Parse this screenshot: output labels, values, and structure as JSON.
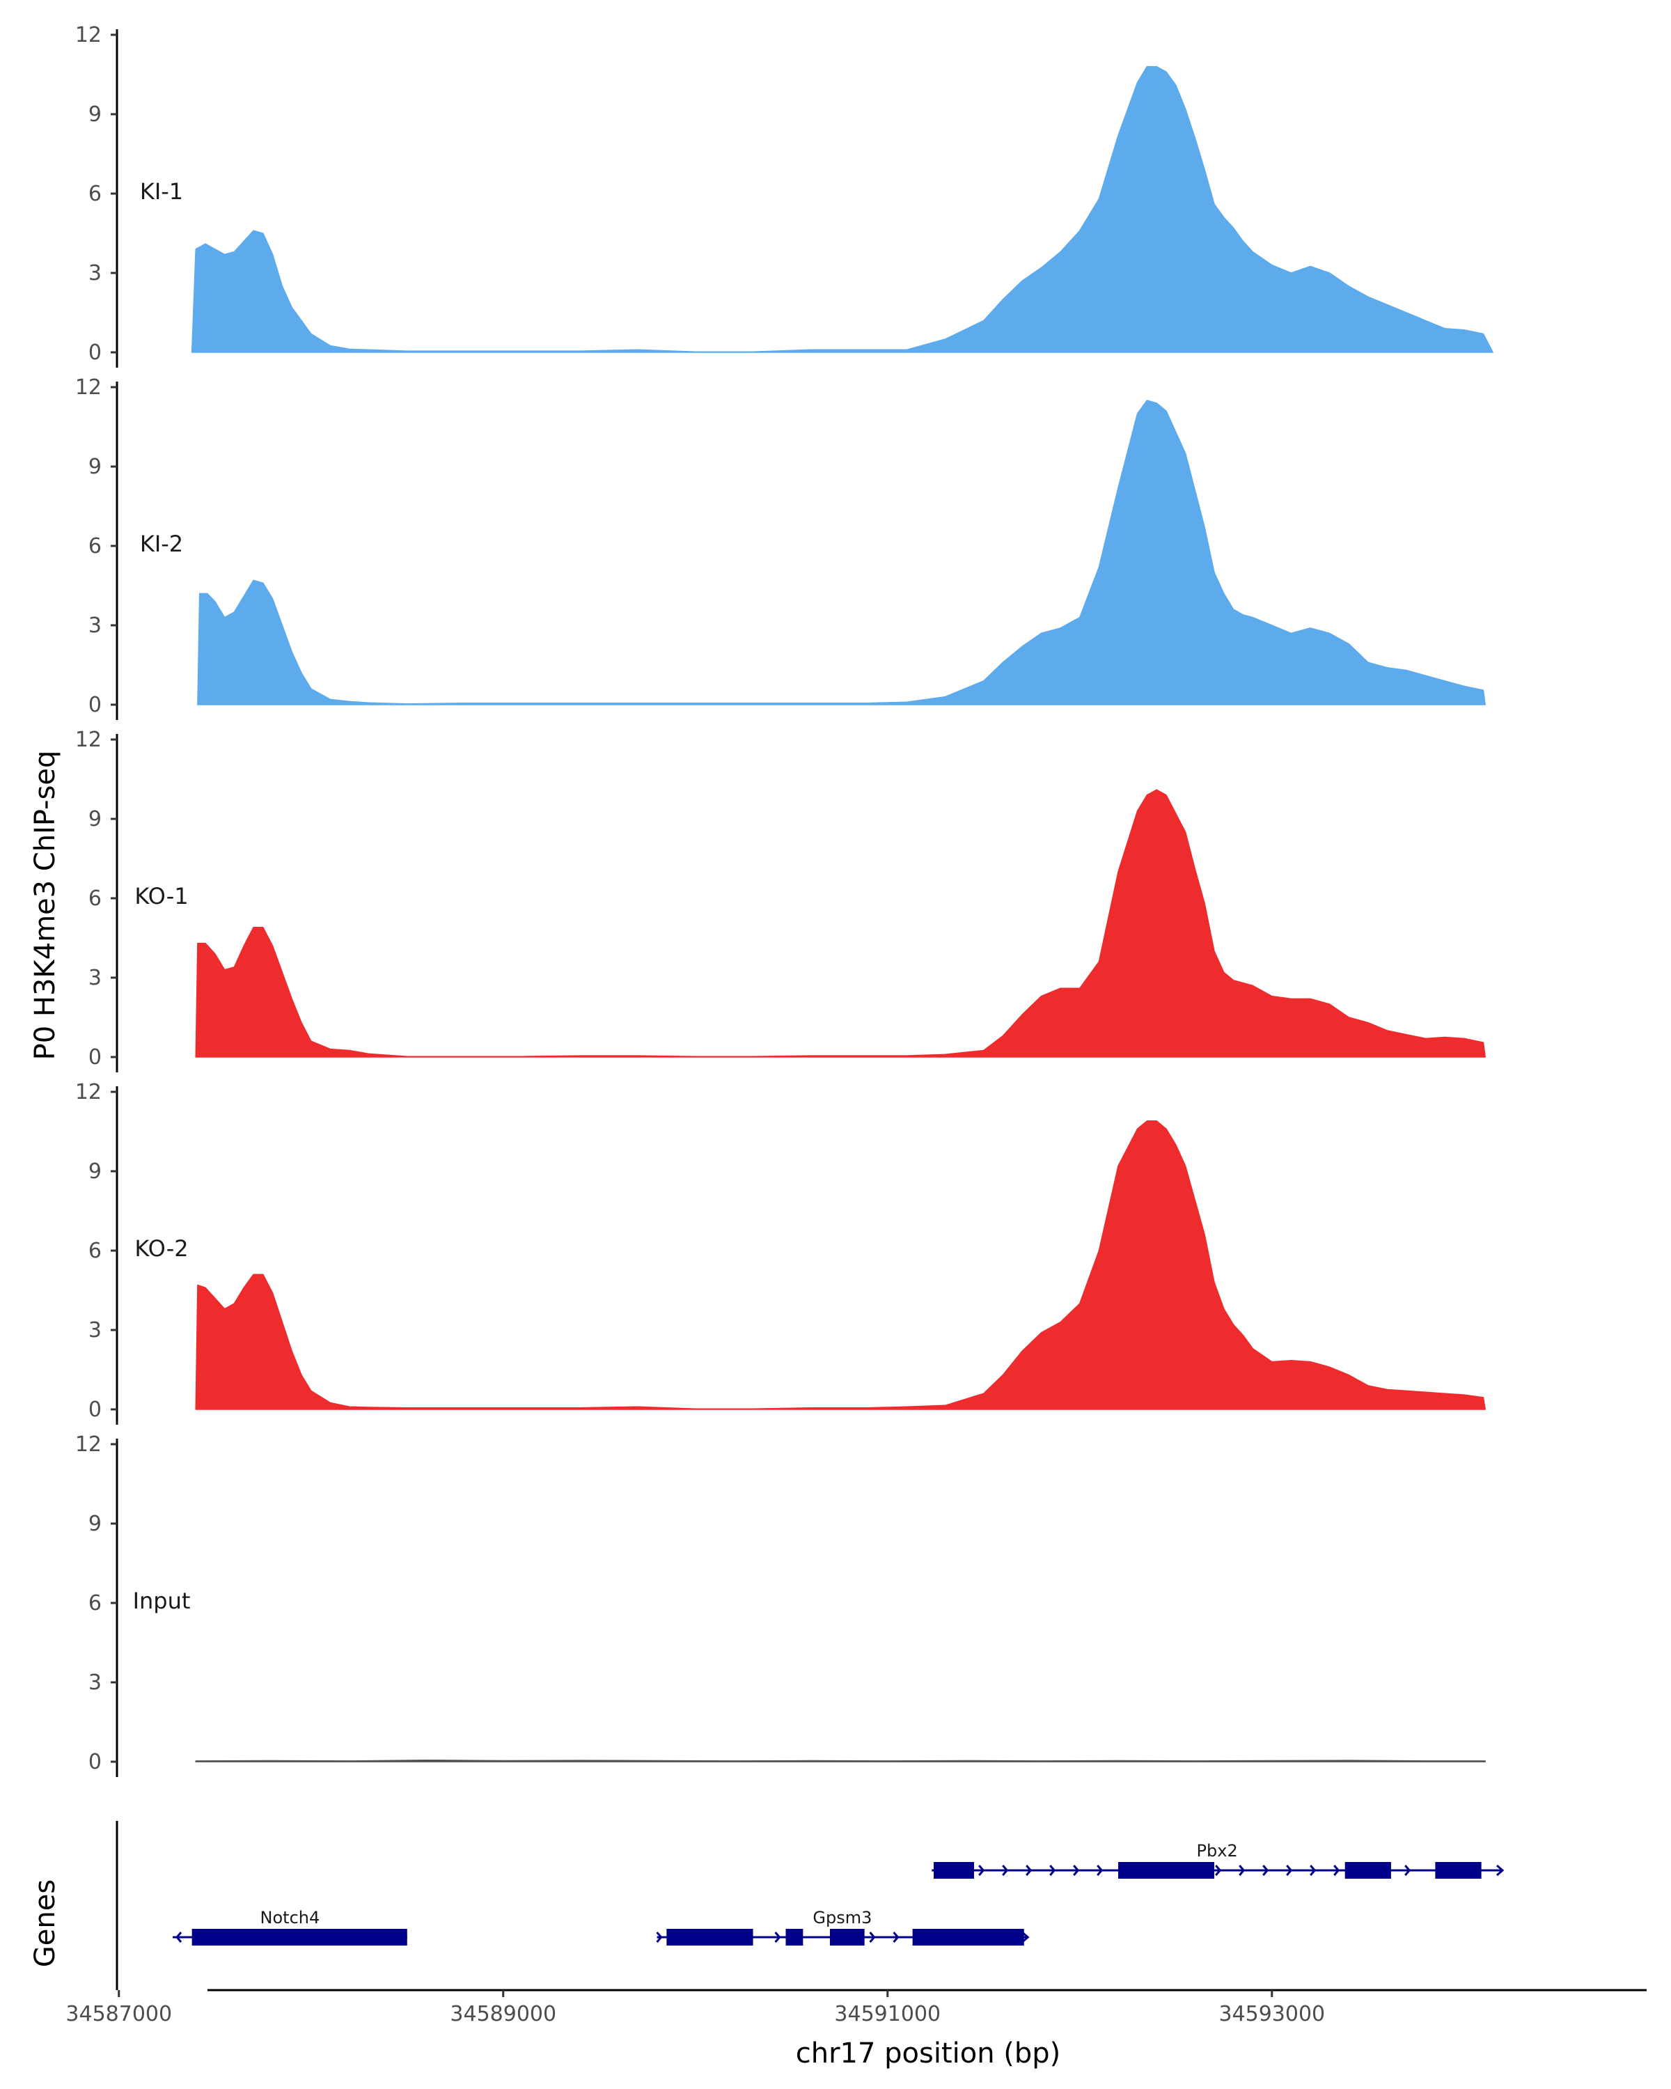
{
  "chart_data": {
    "type": "area",
    "title": "",
    "xlabel": "chr17 position (bp)",
    "ylabel": "P0 H3K4me3 ChIP-seq",
    "genes_label": "Genes",
    "xlim": [
      34586990,
      34594950
    ],
    "ylim": [
      0,
      12
    ],
    "yticks": [
      0,
      3,
      6,
      9,
      12
    ],
    "xticks": [
      34587000,
      34589000,
      34591000,
      34593000
    ],
    "xtick_labels": [
      "34587000",
      "34589000",
      "34591000",
      "34593000"
    ],
    "tracks": [
      {
        "name": "KI-1",
        "color": "#5DABEC",
        "x": [
          34587380,
          34587400,
          34587450,
          34587500,
          34587550,
          34587600,
          34587650,
          34587700,
          34587750,
          34587800,
          34587850,
          34587900,
          34587950,
          34588000,
          34588100,
          34588200,
          34588300,
          34588500,
          34588800,
          34589100,
          34589400,
          34589700,
          34590000,
          34590300,
          34590600,
          34590900,
          34591100,
          34591300,
          34591500,
          34591600,
          34591700,
          34591800,
          34591900,
          34592000,
          34592100,
          34592200,
          34592300,
          34592350,
          34592400,
          34592450,
          34592500,
          34592550,
          34592600,
          34592650,
          34592700,
          34592750,
          34592800,
          34592850,
          34592900,
          34593000,
          34593100,
          34593200,
          34593300,
          34593400,
          34593500,
          34593600,
          34593700,
          34593800,
          34593900,
          34594000,
          34594100,
          34594150
        ],
        "values": [
          0,
          3.9,
          4.1,
          3.9,
          3.7,
          3.8,
          4.2,
          4.6,
          4.5,
          3.7,
          2.5,
          1.7,
          1.2,
          0.7,
          0.25,
          0.12,
          0.1,
          0.05,
          0.05,
          0.05,
          0.05,
          0.1,
          0.02,
          0.02,
          0.1,
          0.1,
          0.1,
          0.5,
          1.2,
          2.0,
          2.7,
          3.2,
          3.8,
          4.6,
          5.8,
          8.2,
          10.2,
          10.8,
          10.8,
          10.6,
          10.1,
          9.2,
          8.1,
          6.9,
          5.6,
          5.1,
          4.7,
          4.2,
          3.8,
          3.3,
          3.0,
          3.25,
          3.0,
          2.5,
          2.1,
          1.8,
          1.5,
          1.2,
          0.9,
          0.85,
          0.7,
          0
        ]
      },
      {
        "name": "KI-2",
        "color": "#5DABEC",
        "x": [
          34587410,
          34587420,
          34587460,
          34587500,
          34587550,
          34587600,
          34587650,
          34587700,
          34587750,
          34587800,
          34587850,
          34587900,
          34587950,
          34588000,
          34588100,
          34588200,
          34588300,
          34588500,
          34588800,
          34589100,
          34589400,
          34589700,
          34590000,
          34590300,
          34590600,
          34590900,
          34591100,
          34591300,
          34591500,
          34591600,
          34591700,
          34591800,
          34591900,
          34592000,
          34592100,
          34592200,
          34592300,
          34592350,
          34592400,
          34592450,
          34592500,
          34592550,
          34592600,
          34592650,
          34592700,
          34592750,
          34592800,
          34592850,
          34592900,
          34593000,
          34593100,
          34593200,
          34593300,
          34593400,
          34593500,
          34593600,
          34593700,
          34593800,
          34593900,
          34594000,
          34594100,
          34594110
        ],
        "values": [
          0,
          4.2,
          4.2,
          3.9,
          3.3,
          3.5,
          4.1,
          4.7,
          4.6,
          4.0,
          3.0,
          2.0,
          1.2,
          0.6,
          0.2,
          0.12,
          0.07,
          0.03,
          0.06,
          0.06,
          0.06,
          0.06,
          0.06,
          0.06,
          0.06,
          0.06,
          0.1,
          0.3,
          0.9,
          1.6,
          2.2,
          2.7,
          2.9,
          3.3,
          5.2,
          8.2,
          11.0,
          11.5,
          11.4,
          11.1,
          10.3,
          9.5,
          8.1,
          6.7,
          5.0,
          4.2,
          3.6,
          3.4,
          3.3,
          3.0,
          2.7,
          2.9,
          2.7,
          2.3,
          1.6,
          1.4,
          1.3,
          1.1,
          0.9,
          0.7,
          0.55,
          0
        ]
      },
      {
        "name": "KO-1",
        "color": "#EE2B2D",
        "x": [
          34587400,
          34587410,
          34587450,
          34587500,
          34587550,
          34587600,
          34587650,
          34587700,
          34587750,
          34587800,
          34587850,
          34587900,
          34587950,
          34588000,
          34588100,
          34588200,
          34588300,
          34588500,
          34588800,
          34589100,
          34589400,
          34589700,
          34590000,
          34590300,
          34590600,
          34590900,
          34591100,
          34591300,
          34591500,
          34591600,
          34591700,
          34591800,
          34591900,
          34592000,
          34592100,
          34592200,
          34592300,
          34592350,
          34592400,
          34592450,
          34592500,
          34592550,
          34592600,
          34592650,
          34592700,
          34592750,
          34592800,
          34592850,
          34592900,
          34593000,
          34593100,
          34593200,
          34593300,
          34593400,
          34593500,
          34593600,
          34593700,
          34593800,
          34593900,
          34594000,
          34594100,
          34594110
        ],
        "values": [
          0,
          4.3,
          4.3,
          3.9,
          3.3,
          3.4,
          4.2,
          4.9,
          4.9,
          4.2,
          3.2,
          2.2,
          1.3,
          0.6,
          0.3,
          0.25,
          0.12,
          0.02,
          0.02,
          0.02,
          0.05,
          0.05,
          0.02,
          0.02,
          0.05,
          0.05,
          0.05,
          0.1,
          0.25,
          0.8,
          1.6,
          2.3,
          2.6,
          2.6,
          3.6,
          7.0,
          9.3,
          9.9,
          10.1,
          9.9,
          9.2,
          8.5,
          7.1,
          5.8,
          4.0,
          3.2,
          2.9,
          2.8,
          2.7,
          2.3,
          2.2,
          2.2,
          2.0,
          1.5,
          1.3,
          1.0,
          0.85,
          0.7,
          0.75,
          0.7,
          0.55,
          0
        ]
      },
      {
        "name": "KO-2",
        "color": "#EE2B2D",
        "x": [
          34587400,
          34587410,
          34587450,
          34587500,
          34587550,
          34587600,
          34587650,
          34587700,
          34587750,
          34587800,
          34587850,
          34587900,
          34587950,
          34588000,
          34588100,
          34588200,
          34588300,
          34588500,
          34588800,
          34589100,
          34589400,
          34589700,
          34590000,
          34590300,
          34590600,
          34590900,
          34591100,
          34591300,
          34591500,
          34591600,
          34591700,
          34591800,
          34591900,
          34592000,
          34592100,
          34592200,
          34592300,
          34592350,
          34592400,
          34592450,
          34592500,
          34592550,
          34592600,
          34592650,
          34592700,
          34592750,
          34592800,
          34592850,
          34592900,
          34593000,
          34593100,
          34593200,
          34593300,
          34593400,
          34593500,
          34593600,
          34593700,
          34593800,
          34593900,
          34594000,
          34594100,
          34594110
        ],
        "values": [
          0,
          4.7,
          4.6,
          4.2,
          3.8,
          4.0,
          4.6,
          5.1,
          5.1,
          4.4,
          3.3,
          2.2,
          1.3,
          0.7,
          0.25,
          0.1,
          0.08,
          0.06,
          0.06,
          0.06,
          0.06,
          0.1,
          0.02,
          0.02,
          0.06,
          0.06,
          0.1,
          0.15,
          0.6,
          1.3,
          2.2,
          2.9,
          3.3,
          4.0,
          6.0,
          9.2,
          10.6,
          10.9,
          10.9,
          10.6,
          10.0,
          9.2,
          7.9,
          6.6,
          4.8,
          3.8,
          3.2,
          2.8,
          2.3,
          1.8,
          1.85,
          1.8,
          1.6,
          1.3,
          0.9,
          0.75,
          0.7,
          0.65,
          0.6,
          0.55,
          0.45,
          0
        ]
      },
      {
        "name": "Input",
        "color": "#4d4d4d",
        "x": [
          34587400,
          34587800,
          34588200,
          34588600,
          34589000,
          34589400,
          34589800,
          34590200,
          34590600,
          34591000,
          34591400,
          34591800,
          34592200,
          34592600,
          34593000,
          34593400,
          34593800,
          34594110
        ],
        "values": [
          0.03,
          0.04,
          0.03,
          0.06,
          0.04,
          0.05,
          0.04,
          0.03,
          0.04,
          0.03,
          0.04,
          0.03,
          0.04,
          0.03,
          0.04,
          0.05,
          0.03,
          0.03
        ]
      }
    ],
    "genes": [
      {
        "name": "Pbx2",
        "row": 1,
        "strand": "+",
        "start": 34591230,
        "end": 34594200,
        "exons": [
          [
            34591240,
            34591450
          ],
          [
            34592200,
            34592700
          ],
          [
            34593380,
            34593620
          ],
          [
            34593850,
            34594090
          ]
        ]
      },
      {
        "name": "Notch4",
        "row": 2,
        "strand": "-",
        "start": 34587280,
        "end": 34588500,
        "exons": [
          [
            34587380,
            34588500
          ]
        ]
      },
      {
        "name": "Gpsm3",
        "row": 2,
        "strand": "+",
        "start": 34589800,
        "end": 34591730,
        "exons": [
          [
            34589850,
            34590300
          ],
          [
            34590470,
            34590560
          ],
          [
            34590700,
            34590880
          ],
          [
            34591130,
            34591710
          ]
        ]
      }
    ]
  }
}
